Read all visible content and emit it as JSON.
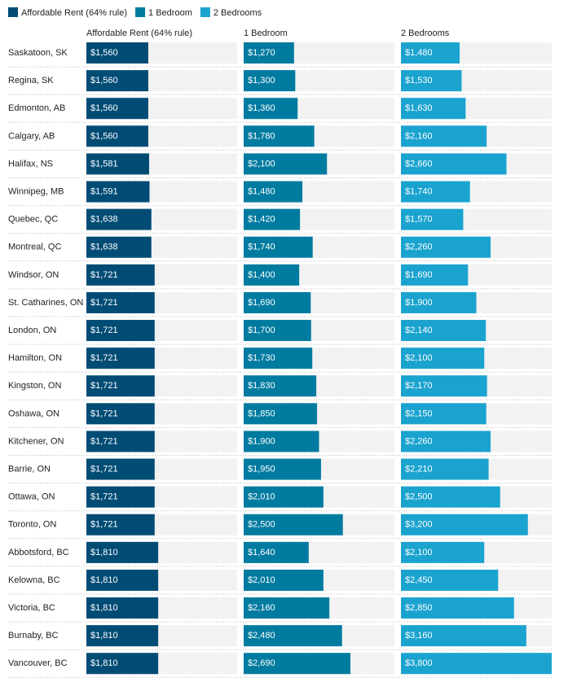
{
  "chart_data": {
    "type": "bar",
    "categories": [
      "Saskatoon, SK",
      "Regina, SK",
      "Edmonton, AB",
      "Calgary, AB",
      "Halifax, NS",
      "Winnipeg, MB",
      "Quebec, QC",
      "Montreal, QC",
      "Windsor, ON",
      "St. Catharines, ON",
      "London, ON",
      "Hamilton, ON",
      "Kingston, ON",
      "Oshawa, ON",
      "Kitchener, ON",
      "Barrie, ON",
      "Ottawa, ON",
      "Toronto, ON",
      "Abbotsford, BC",
      "Kelowna, BC",
      "Victoria, BC",
      "Burnaby, BC",
      "Vancouver, BC"
    ],
    "xlim": [
      0,
      3800
    ],
    "series": [
      {
        "name": "Affordable Rent (64% rule)",
        "color": "#004c75",
        "values": [
          1560,
          1560,
          1560,
          1560,
          1581,
          1591,
          1638,
          1638,
          1721,
          1721,
          1721,
          1721,
          1721,
          1721,
          1721,
          1721,
          1721,
          1721,
          1810,
          1810,
          1810,
          1810,
          1810
        ],
        "value_labels": [
          "$1,560",
          "$1,560",
          "$1,560",
          "$1,560",
          "$1,581",
          "$1,591",
          "$1,638",
          "$1,638",
          "$1,721",
          "$1,721",
          "$1,721",
          "$1,721",
          "$1,721",
          "$1,721",
          "$1,721",
          "$1,721",
          "$1,721",
          "$1,721",
          "$1,810",
          "$1,810",
          "$1,810",
          "$1,810",
          "$1,810"
        ]
      },
      {
        "name": "1 Bedroom",
        "color": "#007ba0",
        "values": [
          1270,
          1300,
          1360,
          1780,
          2100,
          1480,
          1420,
          1740,
          1400,
          1690,
          1700,
          1730,
          1830,
          1850,
          1900,
          1950,
          2010,
          2500,
          1640,
          2010,
          2160,
          2480,
          2690
        ],
        "value_labels": [
          "$1,270",
          "$1,300",
          "$1,360",
          "$1,780",
          "$2,100",
          "$1,480",
          "$1,420",
          "$1,740",
          "$1,400",
          "$1,690",
          "$1,700",
          "$1,730",
          "$1,830",
          "$1,850",
          "$1,900",
          "$1,950",
          "$2,010",
          "$2,500",
          "$1,640",
          "$2,010",
          "$2,160",
          "$2,480",
          "$2,690"
        ]
      },
      {
        "name": "2 Bedrooms",
        "color": "#1ba3cf",
        "values": [
          1480,
          1530,
          1630,
          2160,
          2660,
          1740,
          1570,
          2260,
          1690,
          1900,
          2140,
          2100,
          2170,
          2150,
          2260,
          2210,
          2500,
          3200,
          2100,
          2450,
          2850,
          3160,
          3800
        ],
        "value_labels": [
          "$1,480",
          "$1,530",
          "$1,630",
          "$2,160",
          "$2,660",
          "$1,740",
          "$1,570",
          "$2,260",
          "$1,690",
          "$1,900",
          "$2,140",
          "$2,100",
          "$2,170",
          "$2,150",
          "$2,260",
          "$2,210",
          "$2,500",
          "$3,200",
          "$2,100",
          "$2,450",
          "$2,850",
          "$3,160",
          "$3,800"
        ]
      }
    ]
  }
}
